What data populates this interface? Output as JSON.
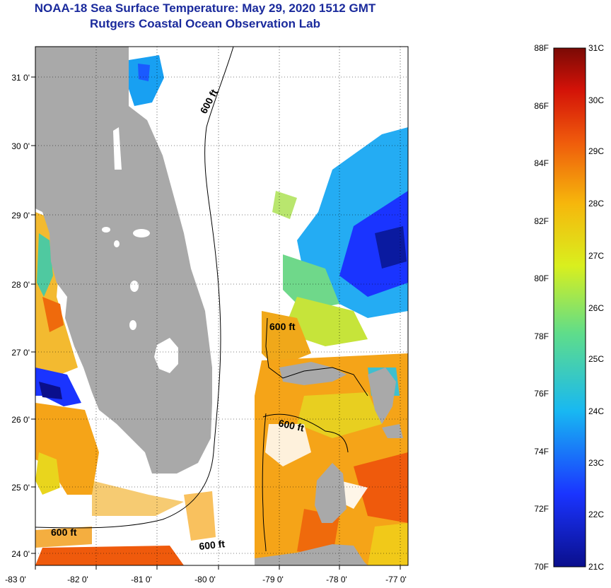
{
  "header": {
    "title": "NOAA-18 Sea Surface Temperature:  May 29, 2020 1512 GMT",
    "subtitle": "Rutgers Coastal Ocean Observation Lab"
  },
  "map": {
    "lon_ticks": [
      "-83 0'",
      "-82 0'",
      "-81 0'",
      "-80 0'",
      "-79 0'",
      "-78 0'",
      "-77 0'"
    ],
    "lat_ticks": [
      "31 0'",
      "30 0'",
      "29 0'",
      "28 0'",
      "27 0'",
      "26 0'",
      "25 0'",
      "24 0'"
    ],
    "contour_labels": [
      "600 ft",
      "600 ft",
      "600 ft",
      "600 ft",
      "600 ft"
    ],
    "colors": {
      "land": "#a9a9a9",
      "cloud_mask": "#ffffff",
      "title": "#1a2a9c"
    }
  },
  "colorbar": {
    "f_labels": [
      "88F",
      "86F",
      "84F",
      "82F",
      "80F",
      "78F",
      "76F",
      "74F",
      "72F",
      "70F"
    ],
    "c_labels": [
      "31C",
      "30C",
      "29C",
      "28C",
      "27C",
      "26C",
      "25C",
      "24C",
      "23C",
      "22C",
      "21C"
    ],
    "colors": [
      "#0a0f8c",
      "#1a34ff",
      "#18b8f2",
      "#5fdd8a",
      "#d9ef1e",
      "#f6b70c",
      "#ef5a0c",
      "#d31208",
      "#7a0a05"
    ]
  }
}
